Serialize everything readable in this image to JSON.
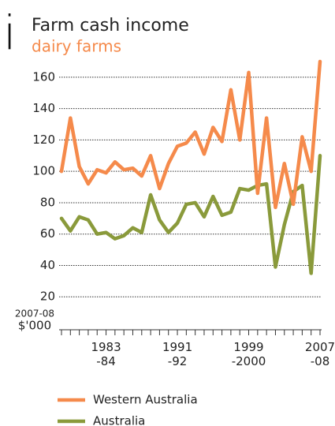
{
  "chart_data": {
    "type": "line",
    "title": "Farm cash income",
    "subtitle": "dairy farms",
    "icon": "i",
    "ylabel": [
      "2007-08",
      "$'000"
    ],
    "categories": [
      null,
      null,
      null,
      null,
      null,
      "1983-84",
      null,
      null,
      null,
      null,
      null,
      null,
      null,
      "1991-92",
      null,
      null,
      null,
      null,
      null,
      null,
      null,
      "1999-2000",
      null,
      null,
      null,
      null,
      null,
      null,
      null,
      "2007-08"
    ],
    "series": [
      {
        "name": "Western Australia",
        "color": "#f58a4b",
        "values": [
          100,
          134,
          103,
          92,
          101,
          99,
          106,
          101,
          102,
          97,
          110,
          89,
          105,
          116,
          118,
          125,
          111,
          128,
          119,
          152,
          120,
          163,
          86,
          134,
          77,
          105,
          79,
          122,
          100,
          170
        ]
      },
      {
        "name": "Australia",
        "color": "#8a9a3b",
        "values": [
          70,
          62,
          71,
          69,
          60,
          61,
          57,
          59,
          64,
          61,
          85,
          69,
          61,
          67,
          79,
          80,
          71,
          84,
          72,
          74,
          89,
          88,
          91,
          92,
          39,
          66,
          87,
          91,
          35,
          110
        ]
      }
    ],
    "ylim": [
      0,
      170
    ],
    "yticks": [
      20,
      40,
      60,
      80,
      100,
      120,
      140,
      160
    ],
    "grid": true
  }
}
